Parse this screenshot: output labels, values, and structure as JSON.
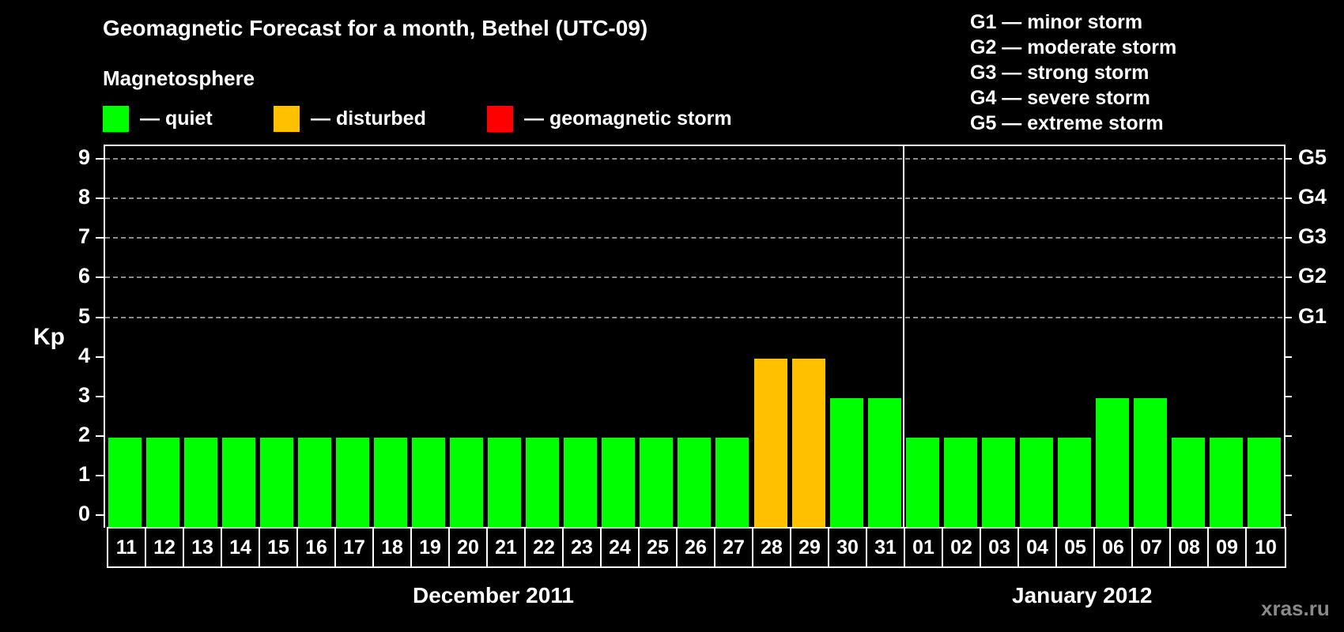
{
  "title": "Geomagnetic Forecast for a month, Bethel (UTC-09)",
  "subtitle": "Magnetosphere",
  "legend": [
    {
      "label": "— quiet",
      "color": "#00ff00"
    },
    {
      "label": "— disturbed",
      "color": "#ffc000"
    },
    {
      "label": "— geomagnetic storm",
      "color": "#ff0000"
    }
  ],
  "storm_scale": [
    "G1 — minor storm",
    "G2 — moderate storm",
    "G3 — strong storm",
    "G4 — severe storm",
    "G5 — extreme storm"
  ],
  "y_axis_label": "Kp",
  "months": [
    "December 2011",
    "January 2012"
  ],
  "watermark": "xras.ru",
  "chart_data": {
    "type": "bar",
    "title": "Geomagnetic Forecast for a month, Bethel (UTC-09)",
    "xlabel": "",
    "ylabel": "Kp",
    "ylim": [
      0,
      9
    ],
    "grid": "dashed horizontal at Kp 5-9",
    "legend_position": "top",
    "categories": [
      "11",
      "12",
      "13",
      "14",
      "15",
      "16",
      "17",
      "18",
      "19",
      "20",
      "21",
      "22",
      "23",
      "24",
      "25",
      "26",
      "27",
      "28",
      "29",
      "30",
      "31",
      "01",
      "02",
      "03",
      "04",
      "05",
      "06",
      "07",
      "08",
      "09",
      "10"
    ],
    "category_months": [
      "December 2011",
      "December 2011",
      "December 2011",
      "December 2011",
      "December 2011",
      "December 2011",
      "December 2011",
      "December 2011",
      "December 2011",
      "December 2011",
      "December 2011",
      "December 2011",
      "December 2011",
      "December 2011",
      "December 2011",
      "December 2011",
      "December 2011",
      "December 2011",
      "December 2011",
      "December 2011",
      "December 2011",
      "January 2012",
      "January 2012",
      "January 2012",
      "January 2012",
      "January 2012",
      "January 2012",
      "January 2012",
      "January 2012",
      "January 2012",
      "January 2012"
    ],
    "values": [
      2,
      2,
      2,
      2,
      2,
      2,
      2,
      2,
      2,
      2,
      2,
      2,
      2,
      2,
      2,
      2,
      2,
      4,
      4,
      3,
      3,
      2,
      2,
      2,
      2,
      2,
      3,
      3,
      2,
      2,
      2
    ],
    "status": [
      "quiet",
      "quiet",
      "quiet",
      "quiet",
      "quiet",
      "quiet",
      "quiet",
      "quiet",
      "quiet",
      "quiet",
      "quiet",
      "quiet",
      "quiet",
      "quiet",
      "quiet",
      "quiet",
      "quiet",
      "disturbed",
      "disturbed",
      "quiet",
      "quiet",
      "quiet",
      "quiet",
      "quiet",
      "quiet",
      "quiet",
      "quiet",
      "quiet",
      "quiet",
      "quiet",
      "quiet"
    ],
    "y_ticks": [
      0,
      1,
      2,
      3,
      4,
      5,
      6,
      7,
      8,
      9
    ],
    "right_ticks": {
      "5": "G1",
      "6": "G2",
      "7": "G3",
      "8": "G4",
      "9": "G5"
    },
    "colors": {
      "quiet": "#00ff00",
      "disturbed": "#ffc000",
      "storm": "#ff0000"
    }
  }
}
